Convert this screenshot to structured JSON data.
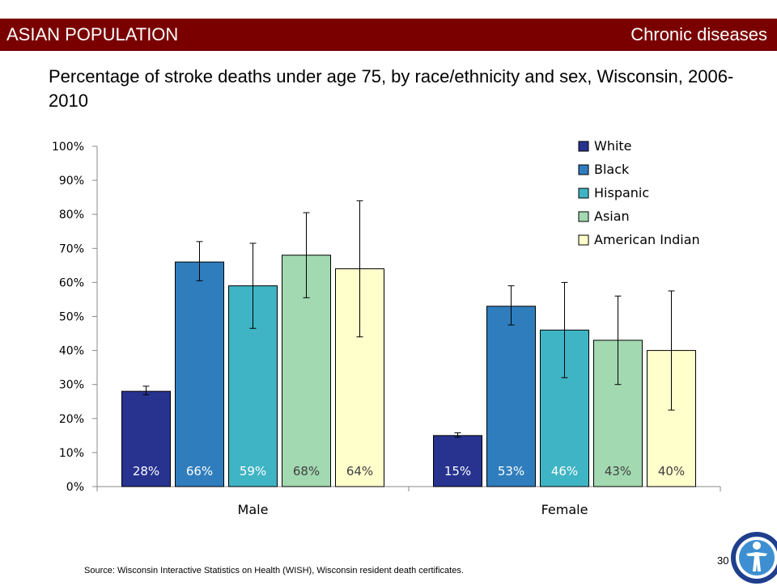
{
  "header": {
    "section_label": "ASIAN POPULATION",
    "topic_label": "Chronic diseases"
  },
  "chart_data": {
    "type": "bar",
    "title": "Percentage of stroke deaths under age 75, by race/ethnicity and sex, Wisconsin, 2006-2010",
    "categories": [
      "Male",
      "Female"
    ],
    "series": [
      {
        "name": "White",
        "color": "#27338f",
        "label_color": "#ffffff",
        "values": [
          28,
          15
        ],
        "labels": [
          "28%",
          "15%"
        ],
        "error_low": [
          27,
          14.5
        ],
        "error_high": [
          29.5,
          15.8
        ]
      },
      {
        "name": "Black",
        "color": "#2f7dbd",
        "label_color": "#ffffff",
        "values": [
          66,
          53
        ],
        "labels": [
          "66%",
          "53%"
        ],
        "error_low": [
          60.5,
          47.5
        ],
        "error_high": [
          72,
          59
        ]
      },
      {
        "name": "Hispanic",
        "color": "#3fb4c4",
        "label_color": "#ffffff",
        "values": [
          59,
          46
        ],
        "labels": [
          "59%",
          "46%"
        ],
        "error_low": [
          46.5,
          32
        ],
        "error_high": [
          71.5,
          60
        ]
      },
      {
        "name": "Asian",
        "color": "#a3d9b1",
        "label_color": "#404040",
        "values": [
          68,
          43
        ],
        "labels": [
          "68%",
          "43%"
        ],
        "error_low": [
          55.5,
          30
        ],
        "error_high": [
          80.5,
          56
        ]
      },
      {
        "name": "American Indian",
        "color": "#ffffcc",
        "label_color": "#404040",
        "values": [
          64,
          40
        ],
        "labels": [
          "64%",
          "40%"
        ],
        "error_low": [
          44,
          22.5
        ],
        "error_high": [
          84,
          57.5
        ]
      }
    ],
    "y_ticks": [
      "0%",
      "10%",
      "20%",
      "30%",
      "40%",
      "50%",
      "60%",
      "70%",
      "80%",
      "90%",
      "100%"
    ],
    "ylim": [
      0,
      100
    ],
    "xlabel": "",
    "ylabel": "",
    "grid": false,
    "legend_position": "top-right"
  },
  "footer": {
    "source": "Source: Wisconsin Interactive Statistics on Health (WISH),  Wisconsin resident death certificates.",
    "page_number": "30"
  }
}
